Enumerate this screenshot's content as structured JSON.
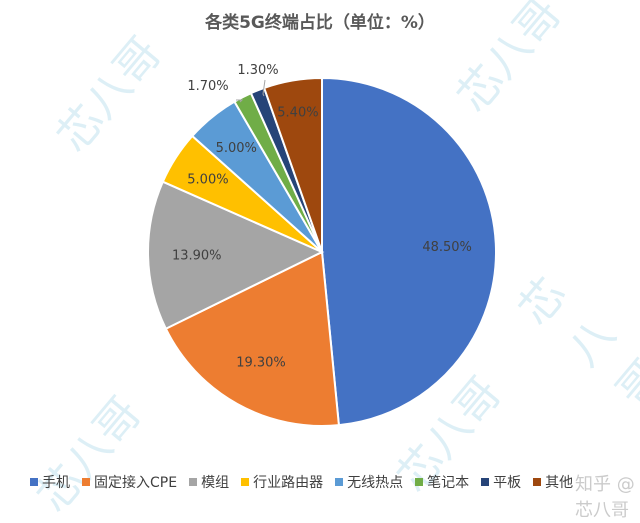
{
  "chart_data": {
    "type": "pie",
    "title": "各类5G终端占比（单位：%）",
    "categories": [
      "手机",
      "固定接入CPE",
      "模组",
      "行业路由器",
      "无线热点",
      "笔记本",
      "平板",
      "其他"
    ],
    "values": [
      48.5,
      19.3,
      13.9,
      5.0,
      5.0,
      1.7,
      1.3,
      5.4
    ],
    "labels": [
      "48.50%",
      "19.30%",
      "13.90%",
      "5.00%",
      "5.00%",
      "1.70%",
      "1.30%",
      "5.40%"
    ],
    "colors": [
      "#4472C4",
      "#ED7D31",
      "#A5A5A5",
      "#FFC000",
      "#5B9BD5",
      "#70AD47",
      "#264478",
      "#9E480E"
    ],
    "legend_position": "bottom",
    "start_angle": "12 o'clock, clockwise"
  },
  "legend": [
    {
      "label": "手机",
      "color": "#4472C4"
    },
    {
      "label": "固定接入CPE",
      "color": "#ED7D31"
    },
    {
      "label": "模组",
      "color": "#A5A5A5"
    },
    {
      "label": "行业路由器",
      "color": "#FFC000"
    },
    {
      "label": "无线热点",
      "color": "#5B9BD5"
    },
    {
      "label": "笔记本",
      "color": "#70AD47"
    },
    {
      "label": "平板",
      "color": "#264478"
    },
    {
      "label": "其他",
      "color": "#9E480E"
    }
  ],
  "watermark": {
    "text": "芯八哥",
    "footer": "知乎 @芯八哥"
  }
}
